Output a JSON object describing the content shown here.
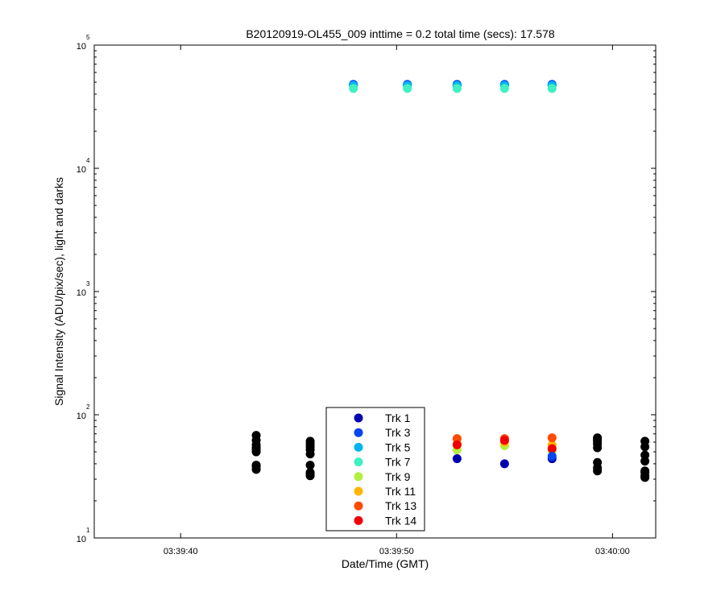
{
  "chart_data": {
    "type": "scatter",
    "title": "B20120919-OL455_009 inttime = 0.2 total time (secs): 17.578",
    "xlabel": "Date/Time (GMT)",
    "ylabel": "Signal Intensity (ADU/pix/sec), light and darks",
    "y_scale": "log",
    "ylim": [
      10,
      100000
    ],
    "y_ticks": [
      {
        "base": "10",
        "exp": "1"
      },
      {
        "base": "10",
        "exp": "2"
      },
      {
        "base": "10",
        "exp": "3"
      },
      {
        "base": "10",
        "exp": "4"
      },
      {
        "base": "10",
        "exp": "5"
      }
    ],
    "xlim": [
      "03:39:36",
      "03:40:02"
    ],
    "x_ticks": [
      "03:39:40",
      "03:39:50",
      "03:40:00"
    ],
    "grid": false,
    "legend_position": "bottom-center",
    "dark_color": "#000000",
    "dark_frames": [
      {
        "x": "03:39:43.5",
        "y": [
          36,
          38,
          39,
          50,
          52,
          54,
          57,
          62,
          68
        ]
      },
      {
        "x": "03:39:46",
        "y": [
          32,
          33,
          34,
          39,
          48,
          52,
          55,
          58,
          61
        ]
      },
      {
        "x": "03:39:59.3",
        "y": [
          35,
          37,
          41,
          54,
          58,
          61,
          63,
          65
        ]
      },
      {
        "x": "03:40:01.5",
        "y": [
          31,
          32,
          34,
          35,
          42,
          47,
          55,
          61
        ]
      }
    ],
    "series": [
      {
        "name": "Trk 1",
        "color": "#0000b0",
        "x": [
          "03:39:48",
          "03:39:50.5",
          "03:39:52.8",
          "03:39:55",
          "03:39:57.2"
        ],
        "y": [
          47500,
          47500,
          47500,
          47500,
          47500
        ]
      },
      {
        "name": "Trk 3",
        "color": "#0045ee",
        "x": [
          "03:39:48",
          "03:39:50.5",
          "03:39:52.8",
          "03:39:55",
          "03:39:57.2"
        ],
        "y": [
          48000,
          48000,
          48000,
          48000,
          48000
        ]
      },
      {
        "name": "Trk 5",
        "color": "#00b4f0",
        "x": [
          "03:39:48",
          "03:39:50.5",
          "03:39:52.8",
          "03:39:55",
          "03:39:57.2"
        ],
        "y": [
          47000,
          47000,
          47000,
          47000,
          47000
        ]
      },
      {
        "name": "Trk 7",
        "color": "#40f0c0",
        "x": [
          "03:39:48",
          "03:39:50.5",
          "03:39:52.8",
          "03:39:55",
          "03:39:57.2"
        ],
        "y": [
          44500,
          44500,
          44500,
          44500,
          44500
        ]
      },
      {
        "name": "Trk 9",
        "color": "#b4f040",
        "x": [
          "03:39:52.8",
          "03:39:55",
          "03:39:57.2"
        ],
        "y": [
          52,
          56,
          51
        ]
      },
      {
        "name": "Trk 11",
        "color": "#ffb400",
        "x": [
          "03:39:52.8",
          "03:39:55",
          "03:39:57.2"
        ],
        "y": [
          58,
          60,
          57
        ]
      },
      {
        "name": "Trk 13",
        "color": "#ff4a00",
        "x": [
          "03:39:52.8",
          "03:39:55",
          "03:39:57.2"
        ],
        "y": [
          64,
          64,
          65
        ]
      },
      {
        "name": "Trk 14",
        "color": "#f00000",
        "x": [
          "03:39:52.8",
          "03:39:55",
          "03:39:57.2"
        ],
        "y": [
          57,
          62,
          53
        ]
      }
    ],
    "extra_points": [
      {
        "series": "Trk 1",
        "x": "03:39:52.8",
        "y": 44
      },
      {
        "series": "Trk 1",
        "x": "03:39:55",
        "y": 40
      },
      {
        "series": "Trk 1",
        "x": "03:39:57.2",
        "y": 44
      },
      {
        "series": "Trk 3",
        "x": "03:39:57.2",
        "y": 46
      }
    ]
  }
}
